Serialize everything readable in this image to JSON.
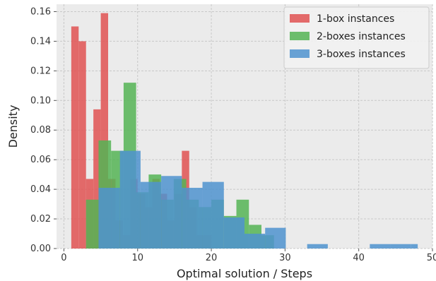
{
  "chart_data": {
    "type": "bar",
    "subtype": "overlapping-histogram",
    "xlabel": "Optimal solution / Steps",
    "ylabel": "Density",
    "xlim": [
      -1,
      50
    ],
    "ylim": [
      0,
      0.165
    ],
    "xticks": [
      "0",
      "10",
      "20",
      "30",
      "40",
      "50"
    ],
    "yticks": [
      "0.00",
      "0.02",
      "0.04",
      "0.06",
      "0.08",
      "0.10",
      "0.12",
      "0.14",
      "0.16"
    ],
    "grid": true,
    "legend_position": "top-right",
    "colors": {
      "plot_background": "#ebebeb",
      "grid": "#c8c8c8"
    },
    "series": [
      {
        "name": "1-box instances",
        "color": "#e05252",
        "opacity": 0.85,
        "bins": [
          [
            1,
            2,
            0.15
          ],
          [
            2,
            3,
            0.14
          ],
          [
            3,
            4,
            0.047
          ],
          [
            4,
            5,
            0.094
          ],
          [
            5,
            6,
            0.159
          ],
          [
            6,
            7,
            0.047
          ],
          [
            7,
            8,
            0.019
          ],
          [
            8,
            9,
            0.009
          ],
          [
            9,
            10,
            0.047
          ],
          [
            10,
            11,
            0.037
          ],
          [
            11,
            12,
            0.028
          ],
          [
            12,
            13,
            0.047
          ],
          [
            13,
            14,
            0.037
          ],
          [
            14,
            15,
            0.019
          ],
          [
            15,
            16,
            0.037
          ],
          [
            16,
            17,
            0.066
          ],
          [
            17,
            18,
            0.028
          ],
          [
            18,
            19,
            0.009
          ],
          [
            19,
            20,
            0.009
          ]
        ]
      },
      {
        "name": "2-boxes instances",
        "color": "#55b455",
        "opacity": 0.85,
        "bins": [
          [
            3,
            4.7,
            0.033
          ],
          [
            4.7,
            6.4,
            0.073
          ],
          [
            6.4,
            8.1,
            0.066
          ],
          [
            8.1,
            9.8,
            0.112
          ],
          [
            9.8,
            11.5,
            0.038
          ],
          [
            11.5,
            13.2,
            0.05
          ],
          [
            13.2,
            14.9,
            0.033
          ],
          [
            14.9,
            16.6,
            0.047
          ],
          [
            16.6,
            18.3,
            0.033
          ],
          [
            18.3,
            20,
            0.028
          ],
          [
            20,
            21.7,
            0.033
          ],
          [
            21.7,
            23.4,
            0.022
          ],
          [
            23.4,
            25.1,
            0.033
          ],
          [
            25.1,
            26.8,
            0.016
          ],
          [
            26.8,
            28.5,
            0.009
          ]
        ]
      },
      {
        "name": "3-boxes instances",
        "color": "#4f93cf",
        "opacity": 0.85,
        "bins": [
          [
            4.7,
            7.6,
            0.041
          ],
          [
            7.6,
            10.4,
            0.066
          ],
          [
            10.4,
            13.2,
            0.045
          ],
          [
            13.2,
            16,
            0.049
          ],
          [
            16,
            18.8,
            0.041
          ],
          [
            18.8,
            21.7,
            0.045
          ],
          [
            21.7,
            24.5,
            0.021
          ],
          [
            24.5,
            27.3,
            0.01
          ],
          [
            27.3,
            30.1,
            0.014
          ],
          [
            30.1,
            33,
            0
          ],
          [
            33,
            35.8,
            0.003
          ],
          [
            35.8,
            38.6,
            0
          ],
          [
            38.6,
            41.5,
            0
          ],
          [
            41.5,
            44.3,
            0.003
          ],
          [
            44.3,
            47.1,
            0.003
          ],
          [
            47.1,
            48,
            0.003
          ]
        ]
      }
    ]
  }
}
